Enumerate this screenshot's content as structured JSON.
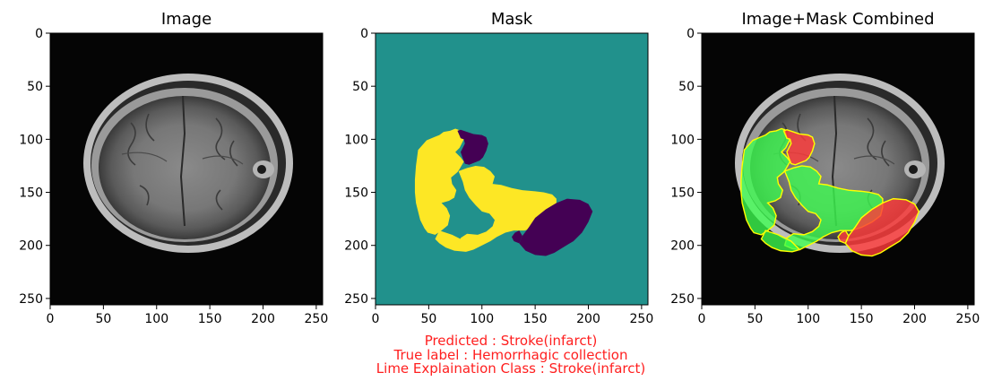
{
  "chart_data": [
    {
      "type": "image",
      "title": "Image",
      "xlim": [
        0,
        256
      ],
      "ylim": [
        256,
        0
      ],
      "xticks": [
        "0",
        "50",
        "100",
        "150",
        "200",
        "250"
      ],
      "yticks": [
        "0",
        "50",
        "100",
        "150",
        "200",
        "250"
      ],
      "grid": false
    },
    {
      "type": "heatmap",
      "title": "Mask",
      "xlim": [
        0,
        256
      ],
      "ylim": [
        256,
        0
      ],
      "xticks": [
        "0",
        "50",
        "100",
        "150",
        "200",
        "250"
      ],
      "yticks": [
        "0",
        "50",
        "100",
        "150",
        "200",
        "250"
      ],
      "grid": false,
      "colors": {
        "background": "#21918c",
        "positive": "#fde725",
        "negative": "#440154"
      }
    },
    {
      "type": "image",
      "title": "Image+Mask Combined",
      "xlim": [
        0,
        256
      ],
      "ylim": [
        256,
        0
      ],
      "xticks": [
        "0",
        "50",
        "100",
        "150",
        "200",
        "250"
      ],
      "yticks": [
        "0",
        "50",
        "100",
        "150",
        "200",
        "250"
      ],
      "grid": false,
      "colors": {
        "positive": "#3cff50",
        "negative": "#ff3a3a",
        "boundary": "#ffff00"
      }
    }
  ],
  "caption": {
    "predicted": "Predicted : Stroke(infarct)",
    "true_label": "True label : Hemorrhagic collection",
    "lime_class": "Lime Explaination Class : Stroke(infarct)"
  }
}
